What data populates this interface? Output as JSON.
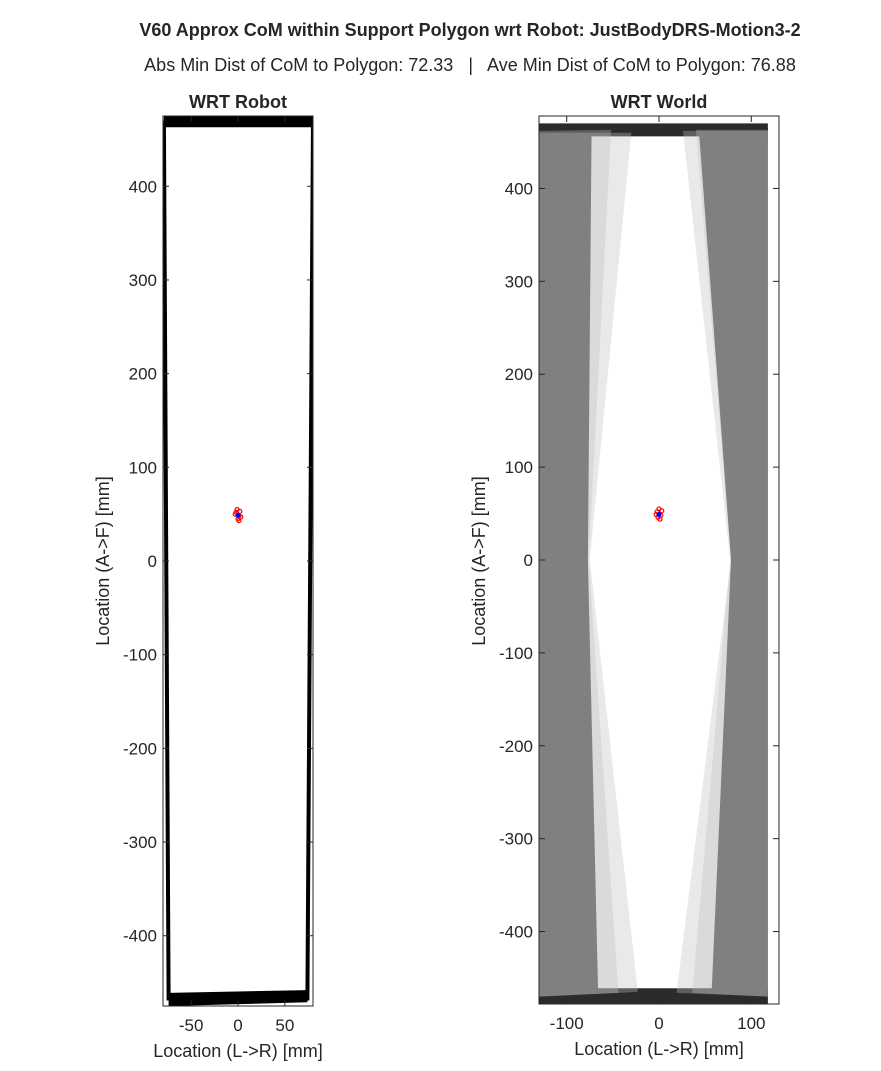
{
  "figure": {
    "title": "V60 Approx CoM within Support Polygon wrt Robot: JustBodyDRS-Motion3-2",
    "subtitle": "Abs Min Dist of CoM to Polygon: 72.33   |   Ave Min Dist of CoM to Polygon: 76.88"
  },
  "chart_data": [
    {
      "type": "line",
      "title": "WRT Robot",
      "xlabel": "Location (L->R) [mm]",
      "ylabel": "Location (A->F) [mm]",
      "xlim": [
        -80,
        80
      ],
      "ylim": [
        -475,
        475
      ],
      "xticks": [
        -50,
        0,
        50
      ],
      "yticks": [
        -400,
        -300,
        -200,
        -100,
        0,
        100,
        200,
        300,
        400
      ],
      "grid": false,
      "series": [
        {
          "kind": "support-polygon",
          "color": "#000000",
          "outline": [
            [
              -79,
              470
            ],
            [
              80,
              470
            ],
            [
              74,
              -467
            ],
            [
              -74,
              -467
            ],
            [
              -79,
              470
            ]
          ],
          "band_top": [
            [
              -79,
              475
            ],
            [
              80,
              475
            ],
            [
              80,
              463
            ],
            [
              -79,
              463
            ]
          ],
          "band_bottom": [
            [
              -74,
              -461
            ],
            [
              74,
              -458
            ],
            [
              74,
              -471
            ],
            [
              -74,
              -475
            ]
          ]
        },
        {
          "kind": "com-points",
          "color": "#ff0000",
          "points": [
            [
              -2,
              52
            ],
            [
              1,
              48
            ],
            [
              0,
              45
            ],
            [
              -3,
              50
            ],
            [
              2,
              53
            ],
            [
              1,
              43
            ],
            [
              -1,
              55
            ],
            [
              3,
              47
            ]
          ]
        },
        {
          "kind": "com-mean",
          "color": "#0000ff",
          "points": [
            [
              0,
              49
            ]
          ]
        }
      ]
    },
    {
      "type": "line",
      "title": "WRT World",
      "xlabel": "Location (L->R) [mm]",
      "ylabel": "Location (A->F) [mm]",
      "xlim": [
        -130,
        130
      ],
      "ylim": [
        -478,
        478
      ],
      "xticks": [
        -100,
        0,
        100
      ],
      "yticks": [
        -400,
        -300,
        -200,
        -100,
        0,
        100,
        200,
        300,
        400
      ],
      "grid": false,
      "series": [
        {
          "kind": "support-polygon-dark",
          "color": "#2b2b2b",
          "left": [
            [
              -130,
              465
            ],
            [
              -73,
              465
            ],
            [
              -77,
              0
            ],
            [
              -66,
              -465
            ],
            [
              -130,
              -470
            ],
            [
              -130,
              465
            ]
          ],
          "right": [
            [
              43,
              465
            ],
            [
              118,
              465
            ],
            [
              118,
              -470
            ],
            [
              57,
              -465
            ],
            [
              78,
              0
            ],
            [
              43,
              465
            ]
          ],
          "top_band": [
            [
              -130,
              470
            ],
            [
              118,
              470
            ],
            [
              118,
              456
            ],
            [
              -130,
              456
            ]
          ],
          "bottom_band": [
            [
              -130,
              -461
            ],
            [
              118,
              -461
            ],
            [
              118,
              -478
            ],
            [
              -130,
              -478
            ]
          ]
        },
        {
          "kind": "support-polygon-faint",
          "color": "#bfbfbf",
          "polygons": [
            [
              [
                -130,
                460
              ],
              [
                -30,
                460
              ],
              [
                -75,
                0
              ],
              [
                -23,
                -465
              ],
              [
                -130,
                -470
              ]
            ],
            [
              [
                -130,
                462
              ],
              [
                -52,
                463
              ],
              [
                -76,
                0
              ],
              [
                -44,
                -466
              ],
              [
                -130,
                -470
              ]
            ],
            [
              [
                40,
                463
              ],
              [
                118,
                463
              ],
              [
                118,
                -470
              ],
              [
                19,
                -466
              ],
              [
                78,
                0
              ]
            ],
            [
              [
                26,
                462
              ],
              [
                118,
                462
              ],
              [
                118,
                -470
              ],
              [
                36,
                -466
              ],
              [
                77,
                0
              ]
            ]
          ]
        },
        {
          "kind": "com-points",
          "color": "#ff0000",
          "points": [
            [
              -2,
              52
            ],
            [
              2,
              48
            ],
            [
              1,
              44
            ],
            [
              -3,
              49
            ],
            [
              3,
              53
            ],
            [
              -1,
              46
            ],
            [
              0,
              55
            ]
          ]
        },
        {
          "kind": "com-mean",
          "color": "#0000ff",
          "points": [
            [
              0,
              49
            ]
          ]
        }
      ]
    }
  ]
}
